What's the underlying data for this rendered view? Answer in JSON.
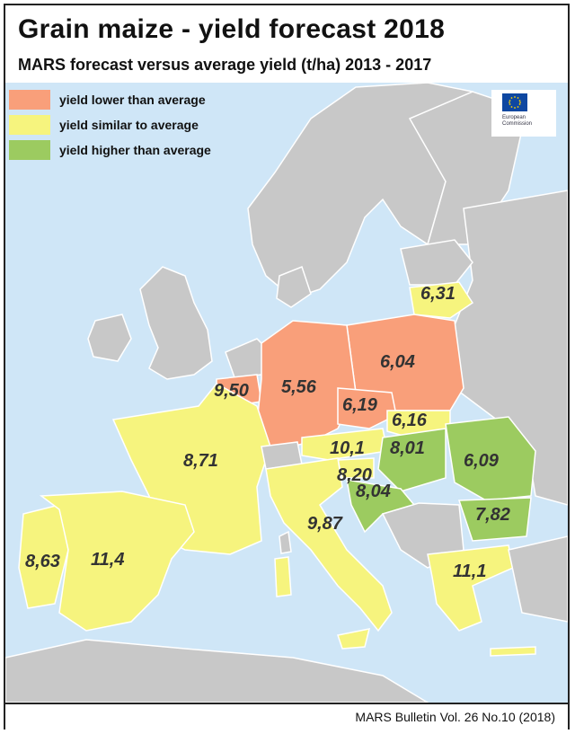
{
  "header": {
    "title": "Grain maize - yield forecast 2018",
    "subtitle": "MARS forecast versus average yield (t/ha) 2013 - 2017"
  },
  "legend": {
    "items": [
      {
        "label": "yield lower than average",
        "color": "#f99f7a"
      },
      {
        "label": "yield similar to average",
        "color": "#f6f47e"
      },
      {
        "label": "yield higher than average",
        "color": "#9ccb60"
      }
    ]
  },
  "logo": {
    "text_line1": "European",
    "text_line2": "Commission"
  },
  "map_colors": {
    "sea": "#cfe6f7",
    "land_no_data": "#c8c8c8",
    "lower": "#f99f7a",
    "similar": "#f6f47e",
    "higher": "#9ccb60"
  },
  "regions": [
    {
      "value": "6,31",
      "category": "similar"
    },
    {
      "value": "6,04",
      "category": "lower"
    },
    {
      "value": "9,50",
      "category": "lower"
    },
    {
      "value": "5,56",
      "category": "lower"
    },
    {
      "value": "6,19",
      "category": "lower"
    },
    {
      "value": "6,16",
      "category": "similar"
    },
    {
      "value": "8,71",
      "category": "similar"
    },
    {
      "value": "10,1",
      "category": "similar"
    },
    {
      "value": "8,01",
      "category": "higher"
    },
    {
      "value": "6,09",
      "category": "higher"
    },
    {
      "value": "8,20",
      "category": "similar"
    },
    {
      "value": "8,04",
      "category": "higher"
    },
    {
      "value": "9,87",
      "category": "similar"
    },
    {
      "value": "7,82",
      "category": "higher"
    },
    {
      "value": "8,63",
      "category": "similar"
    },
    {
      "value": "11,4",
      "category": "similar"
    },
    {
      "value": "11,1",
      "category": "similar"
    }
  ],
  "footer": {
    "source": "MARS Bulletin Vol. 26 No.10 (2018)"
  }
}
